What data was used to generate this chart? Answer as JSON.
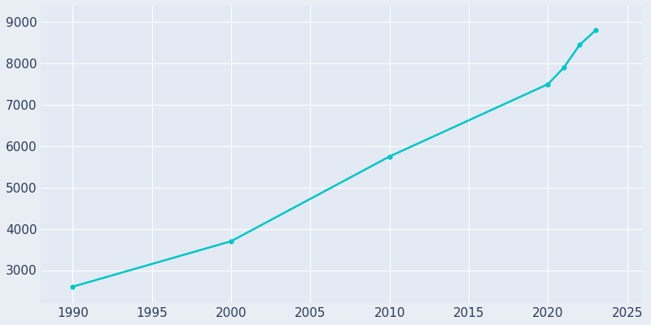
{
  "years": [
    1990,
    2000,
    2010,
    2020,
    2021,
    2022,
    2023
  ],
  "population": [
    2600,
    3700,
    5750,
    7500,
    7900,
    8450,
    8800
  ],
  "line_color": "#00C5C5",
  "background_color": "#E8EEF4",
  "plot_background_color": "#E3EAF4",
  "grid_color": "#FFFFFF",
  "tick_label_color": "#2D3A5A",
  "xlim": [
    1988,
    2026
  ],
  "ylim": [
    2200,
    9400
  ],
  "xticks": [
    1990,
    1995,
    2000,
    2005,
    2010,
    2015,
    2020,
    2025
  ],
  "yticks": [
    3000,
    4000,
    5000,
    6000,
    7000,
    8000,
    9000
  ],
  "linewidth": 1.8,
  "marker": "o",
  "markersize": 3.5,
  "tick_fontsize": 11
}
